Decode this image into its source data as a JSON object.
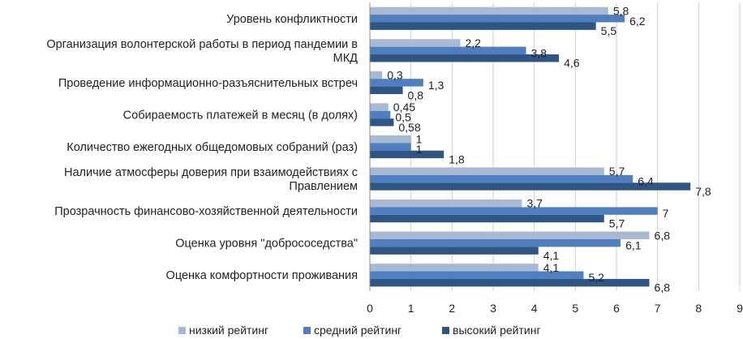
{
  "chart_data": {
    "type": "bar",
    "orientation": "horizontal",
    "categories": [
      [
        "Уровень конфликтности"
      ],
      [
        "Организация волонтерской работы в период пандемии в",
        "МКД"
      ],
      [
        "Проведение информационно-разъяснительных встреч"
      ],
      [
        "Собираемость платежей в месяц (в долях)"
      ],
      [
        "Количество ежегодных общедомовых собраний (раз)"
      ],
      [
        "Наличие атмосферы доверия при взаимодействиях с",
        "Правлением"
      ],
      [
        "Прозрачность финансово-хозяйственной деятельности"
      ],
      [
        "Оценка уровня \"добрососедства\""
      ],
      [
        "Оценка комфортности проживания"
      ]
    ],
    "series": [
      {
        "name": "низкий рейтинг",
        "color": "#a9b8d3",
        "values": [
          5.8,
          2.2,
          0.3,
          0.45,
          1,
          5.7,
          3.7,
          6.8,
          4.1
        ],
        "labels": [
          "5,8",
          "2,2",
          "0,3",
          "0,45",
          "1",
          "5,7",
          "3,7",
          "6,8",
          "4,1"
        ]
      },
      {
        "name": "средний рейтинг",
        "color": "#4f7fbe",
        "values": [
          6.2,
          3.8,
          1.3,
          0.5,
          1,
          6.4,
          7,
          6.1,
          5.2
        ],
        "labels": [
          "6,2",
          "3,8",
          "1,3",
          "0,5",
          "1",
          "6,4",
          "7",
          "6,1",
          "5,2"
        ]
      },
      {
        "name": "высокий рейтинг",
        "color": "#2f5585",
        "values": [
          5.5,
          4.6,
          0.8,
          0.58,
          1.8,
          7.8,
          5.7,
          4.1,
          6.8
        ],
        "labels": [
          "5,5",
          "4,6",
          "0,8",
          "0,58",
          "1,8",
          "7,8",
          "5,7",
          "4,1",
          "6,8"
        ]
      }
    ],
    "xlim": [
      0,
      9
    ],
    "xticks": [
      "0",
      "1",
      "2",
      "3",
      "4",
      "5",
      "6",
      "7",
      "8",
      "9"
    ],
    "grid": true,
    "legend": "bottom",
    "title": "",
    "xlabel": "",
    "ylabel": ""
  }
}
